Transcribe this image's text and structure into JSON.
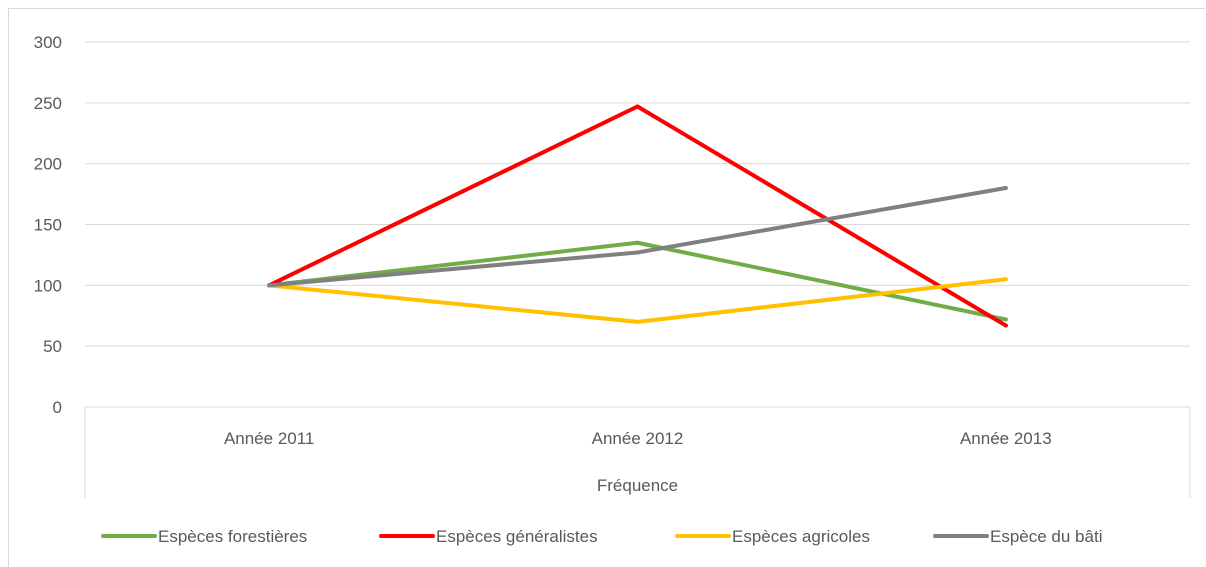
{
  "chart_data": {
    "type": "line",
    "categories": [
      "Année 2011",
      "Année 2012",
      "Année 2013"
    ],
    "xlabel": "Fréquence",
    "ylabel": "",
    "ylim": [
      0,
      300
    ],
    "yticks": [
      0,
      50,
      100,
      150,
      200,
      250,
      300
    ],
    "grid": true,
    "legend_position": "bottom",
    "series": [
      {
        "name": "Espèces forestières",
        "color": "#70ad47",
        "values": [
          100,
          135,
          72
        ]
      },
      {
        "name": "Espèces généralistes",
        "color": "#ff0000",
        "values": [
          100,
          247,
          67
        ]
      },
      {
        "name": "Espèces agricoles",
        "color": "#ffc000",
        "values": [
          100,
          70,
          105
        ]
      },
      {
        "name": "Espèce du bâti",
        "color": "#808080",
        "values": [
          100,
          127,
          180
        ]
      }
    ]
  }
}
